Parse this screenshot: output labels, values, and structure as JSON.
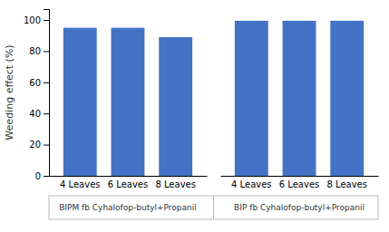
{
  "chart_data": {
    "type": "bar",
    "groups": [
      {
        "label": "BIPM fb Cyhalofop-butyl+Propanil",
        "categories": [
          "4 Leaves",
          "6 Leaves",
          "8 Leaves"
        ],
        "values": [
          95.0,
          95.0,
          89.0
        ]
      },
      {
        "label": "BIP fb Cyhalofop-butyl+Propanil",
        "categories": [
          "4 Leaves",
          "6 Leaves",
          "8 Leaves"
        ],
        "values": [
          99.5,
          99.5,
          99.5
        ]
      }
    ],
    "color": "#4472C4",
    "ylabel": "Weeding effect (%)",
    "ylim": [
      0,
      107
    ],
    "yticks": [
      0,
      20,
      40,
      60,
      80,
      100
    ],
    "grid": false
  }
}
